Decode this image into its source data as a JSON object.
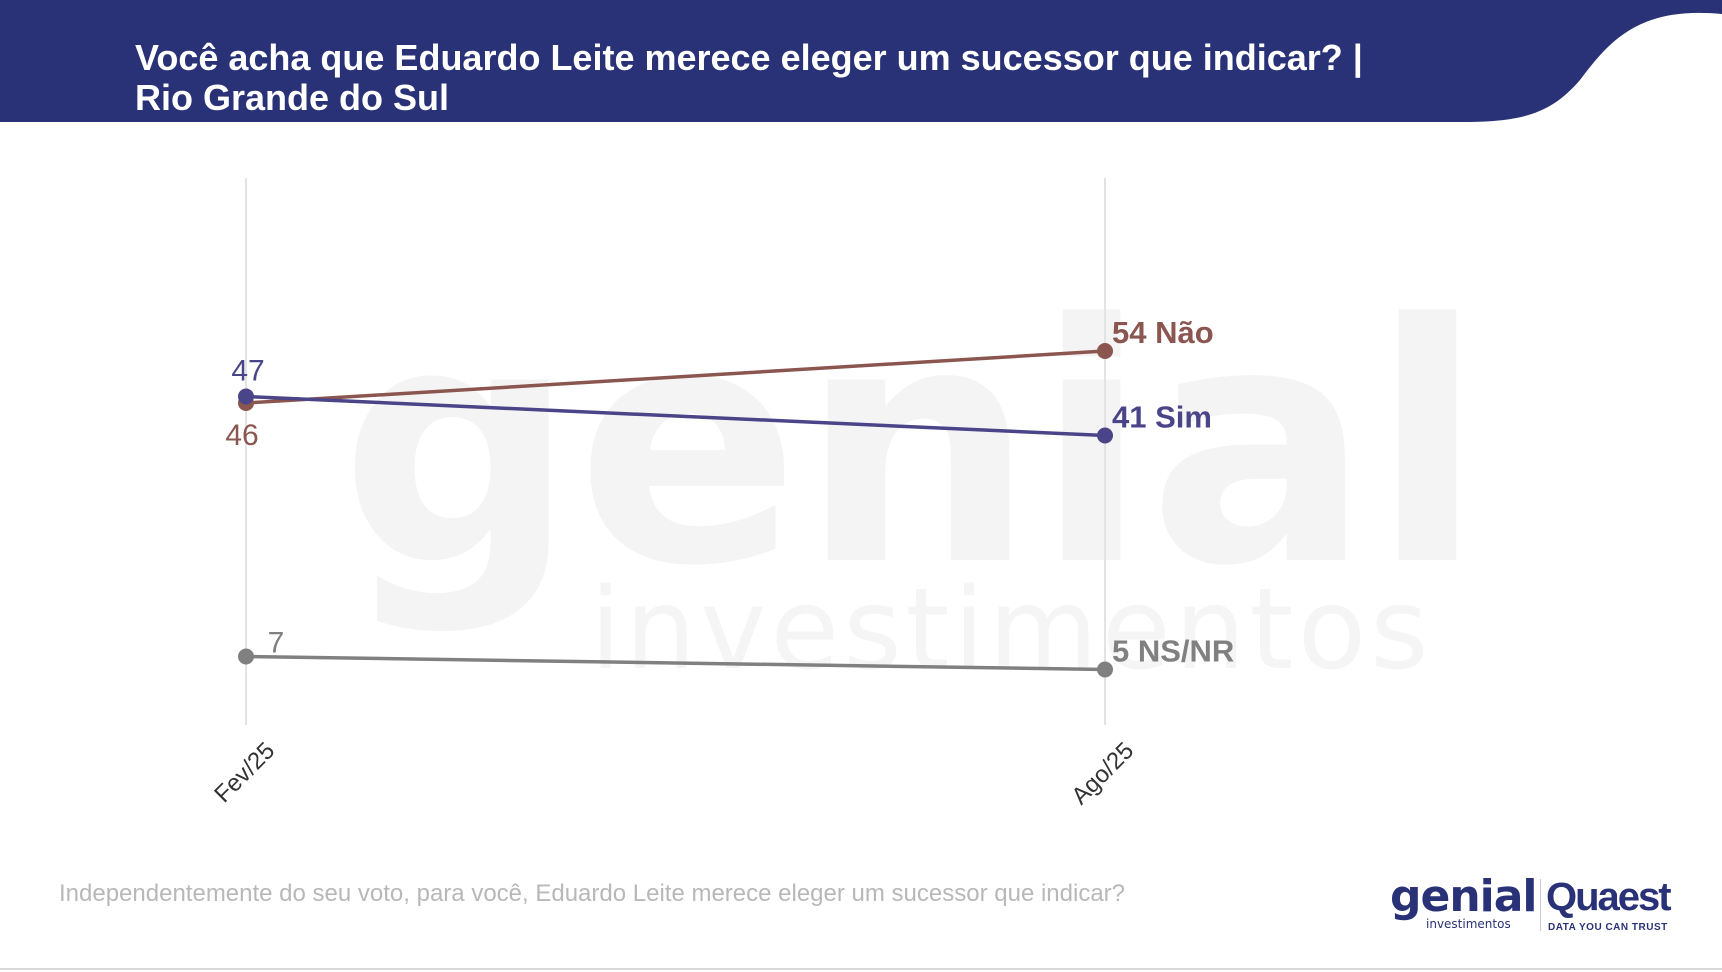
{
  "header": {
    "title_line1": "Você acha que Eduardo Leite merece eleger um sucessor que indicar? |",
    "title_line2": "Rio Grande do Sul"
  },
  "watermark": {
    "word": "genial",
    "sub": "investimentos"
  },
  "chart_data": {
    "type": "line",
    "x": [
      "Fev/25",
      "Ago/25"
    ],
    "series": [
      {
        "name": "Não",
        "values": [
          46,
          54
        ],
        "color": "#8b564f"
      },
      {
        "name": "Sim",
        "values": [
          47,
          41
        ],
        "color": "#4a4488"
      },
      {
        "name": "NS/NR",
        "values": [
          7,
          5
        ],
        "color": "#808080"
      }
    ],
    "ylim": [
      0,
      60
    ],
    "grid": false,
    "gridlines_x": true,
    "legend": "end-of-line labels"
  },
  "footnote": "Independentemente do seu voto, para você, Eduardo Leite merece eleger um sucessor que indicar?",
  "logos": {
    "genial": "genial",
    "genial_sub": "investimentos",
    "quaest": "Quaest",
    "quaest_sub": "DATA YOU CAN TRUST"
  },
  "colors": {
    "header_bg": "#2a3277"
  }
}
